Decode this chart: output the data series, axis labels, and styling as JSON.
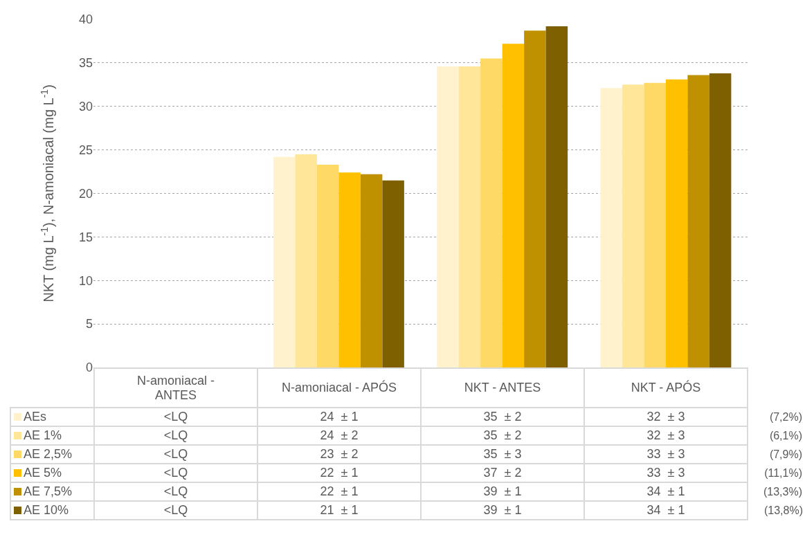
{
  "chart_data": {
    "type": "bar",
    "ylabel": "NKT (mg L$^{-1}$), N-amoniacal (mg L$^{-1}$)",
    "categories": [
      "N-amoniacal - ANTES",
      "N-amoniacal - APÓS",
      "NKT - ANTES",
      "NKT - APÓS"
    ],
    "series": [
      {
        "name": "AEs",
        "color": "#fff2cc",
        "values": [
          null,
          24.2,
          34.6,
          32.1
        ],
        "value_labels": [
          "<LQ",
          "24  ± 1",
          "35  ± 2",
          "32  ± 3"
        ]
      },
      {
        "name": "AE 1%",
        "color": "#ffe699",
        "values": [
          null,
          24.5,
          34.6,
          32.5
        ],
        "value_labels": [
          "<LQ",
          "24  ± 2",
          "35  ± 2",
          "32  ± 3"
        ]
      },
      {
        "name": "AE 2,5%",
        "color": "#ffd966",
        "values": [
          null,
          23.3,
          35.5,
          32.7
        ],
        "value_labels": [
          "<LQ",
          "23  ± 2",
          "35  ± 3",
          "33  ± 3"
        ]
      },
      {
        "name": "AE 5%",
        "color": "#ffc000",
        "values": [
          null,
          22.4,
          37.2,
          33.1
        ],
        "value_labels": [
          "<LQ",
          "22  ± 1",
          "37  ± 2",
          "33  ± 3"
        ]
      },
      {
        "name": "AE 7,5%",
        "color": "#bf9000",
        "values": [
          null,
          22.2,
          38.7,
          33.6
        ],
        "value_labels": [
          "<LQ",
          "22  ± 1",
          "39  ± 1",
          "34  ± 1"
        ]
      },
      {
        "name": "AE 10%",
        "color": "#7f6000",
        "values": [
          null,
          21.5,
          39.2,
          33.8
        ],
        "value_labels": [
          "<LQ",
          "21  ± 1",
          "39  ± 1",
          "34  ± 1"
        ]
      }
    ],
    "annotations": [
      "(7,2%)",
      "(6,1%)",
      "(7,9%)",
      "(11,1%)",
      "(13,3%)",
      "(13,8%)"
    ],
    "ylim": [
      0,
      40
    ],
    "yticks": [
      0,
      5,
      10,
      15,
      20,
      25,
      30,
      35,
      40
    ],
    "grid": "y",
    "legend": "bottom"
  }
}
